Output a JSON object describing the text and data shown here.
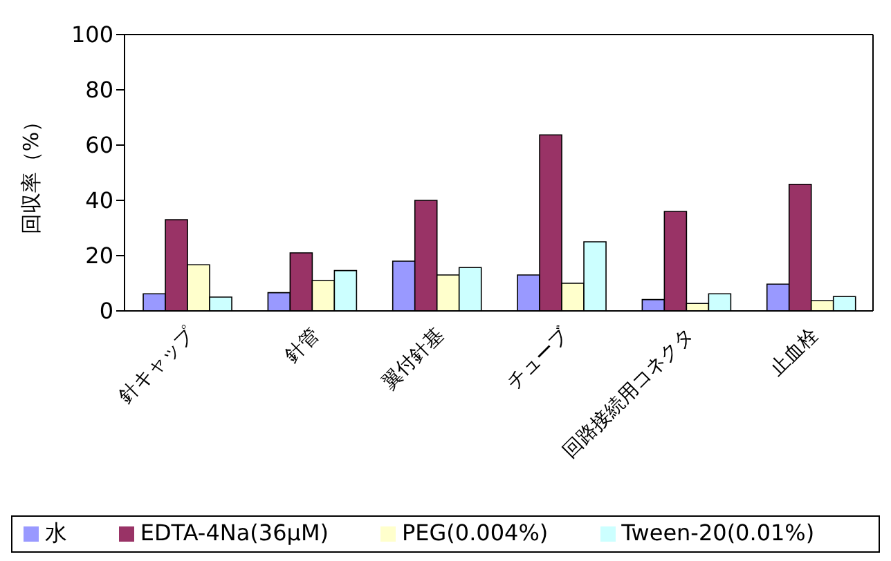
{
  "chart_data": {
    "type": "bar",
    "ylabel": "回収率（%）",
    "categories": [
      "針キャップ",
      "針管",
      "翼付針基",
      "チューブ",
      "回路接続用コネクタ",
      "止血栓"
    ],
    "series": [
      {
        "name": "水",
        "color": "#9999ff",
        "values": [
          6.2,
          6.6,
          18,
          13,
          4.1,
          9.7
        ]
      },
      {
        "name": "EDTA-4Na(36μM)",
        "color": "#993366",
        "values": [
          33,
          21,
          40,
          63.7,
          36,
          45.8
        ]
      },
      {
        "name": "PEG(0.004%)",
        "color": "#ffffcc",
        "values": [
          16.7,
          11,
          13,
          10,
          2.7,
          3.7
        ]
      },
      {
        "name": "Tween-20(0.01%)",
        "color": "#ccffff",
        "values": [
          5,
          14.6,
          15.7,
          25,
          6.2,
          5.2
        ]
      }
    ],
    "ylim": [
      0,
      100
    ],
    "yticks": [
      0,
      20,
      40,
      60,
      80,
      100
    ],
    "grid": false,
    "legend": "bottom"
  }
}
